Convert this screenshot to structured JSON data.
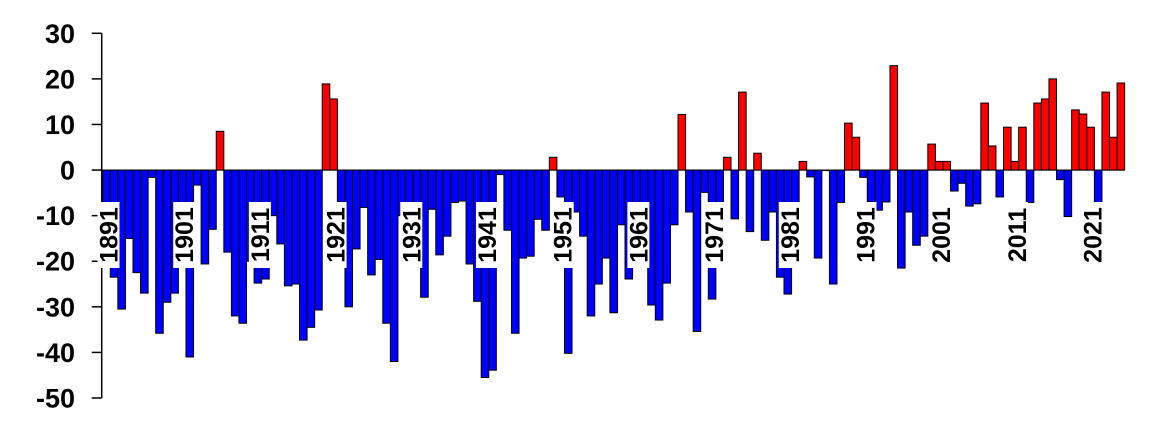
{
  "chart_data": {
    "type": "bar",
    "title": "",
    "xlabel": "",
    "ylabel": "",
    "ylim": [
      -50,
      30
    ],
    "yticks": [
      "30",
      "20",
      "10",
      "0",
      "-10",
      "-20",
      "-30",
      "-40",
      "-50"
    ],
    "xtick_labels": [
      "1891",
      "1901",
      "1911",
      "1921",
      "1931",
      "1941",
      "1951",
      "1961",
      "1971",
      "1981",
      "1991",
      "2001",
      "2011",
      "2021"
    ],
    "grid": false,
    "legend": "none",
    "colors": {
      "positive": "#ff0000",
      "negative": "#0000ff",
      "outline": "#000000"
    },
    "x_start": 1891,
    "x_end": 2025,
    "values": [
      -12,
      -23.5,
      -30.5,
      -15,
      -22.5,
      -27,
      -1.6,
      -35.8,
      -29,
      -27,
      -10,
      -41,
      -3.3,
      -20.6,
      -13,
      8.5,
      -18,
      -32,
      -33.6,
      -20,
      -24.8,
      -23.9,
      -10,
      -16.2,
      -25.4,
      -25,
      -37.3,
      -34.5,
      -30.7,
      18.9,
      15.6,
      -7,
      -30,
      -17.3,
      -8.2,
      -23,
      -19.6,
      -33.6,
      -42,
      -10,
      -12,
      -19.6,
      -27.9,
      -8.6,
      -18.6,
      -14.5,
      -7.1,
      -6.8,
      -20.6,
      -28.8,
      -45.5,
      -43.9,
      -1,
      -13.2,
      -35.8,
      -19.3,
      -18.9,
      -10.8,
      -13.2,
      2.8,
      -5.9,
      -40.2,
      -9.2,
      -14.5,
      -32,
      -25,
      -19.3,
      -31.3,
      -12,
      -23.9,
      -9.2,
      -9.2,
      -29.6,
      -32.9,
      -24.8,
      -12,
      12.2,
      -9.2,
      -35.4,
      -4.9,
      -28.3,
      -13.6,
      2.8,
      -10.7,
      17.1,
      -13.5,
      3.7,
      -15.4,
      -9.2,
      -23.5,
      -27.2,
      -9.2,
      1.9,
      -1.5,
      -19.3,
      0,
      -25,
      -7.1,
      10.3,
      7.2,
      -1.6,
      -7,
      -8.8,
      -7,
      22.9,
      -21.5,
      -9.2,
      -16.5,
      -14.5,
      5.7,
      1.9,
      1.9,
      -4.6,
      -2.9,
      -7.9,
      -7.4,
      14.7,
      5.3,
      -5.9,
      9.4,
      1.9,
      9.4,
      -7.1,
      14.7,
      15.6,
      20,
      -2.1,
      -10.2,
      13.2,
      12.3,
      9.4,
      -7.1,
      17.1,
      7.2,
      19.1
    ]
  }
}
